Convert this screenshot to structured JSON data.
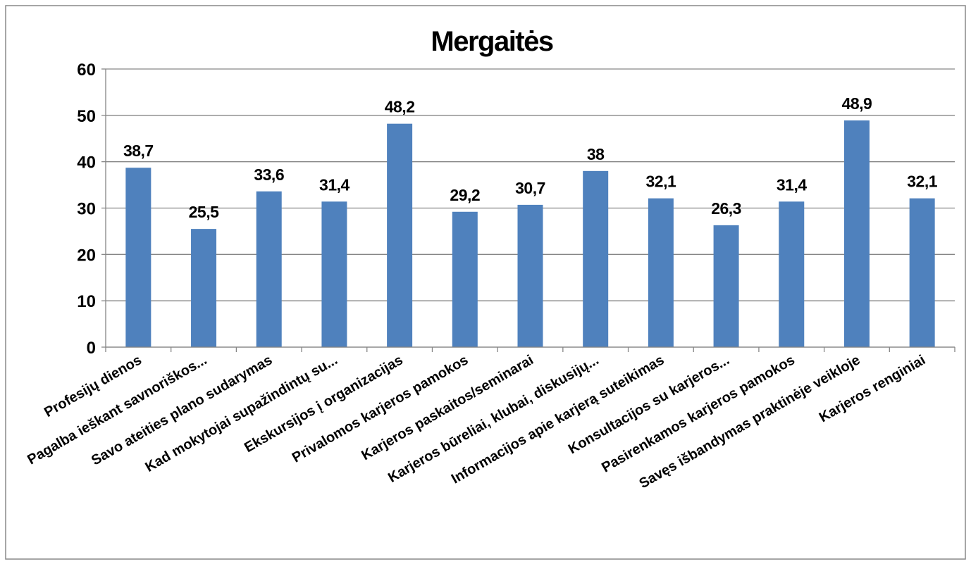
{
  "chart_data": {
    "type": "bar",
    "title": "Mergaitės",
    "categories": [
      "Profesijų dienos",
      "Pagalba ieškant savnoriškos...",
      "Savo ateities plano sudarymas",
      "Kad mokytojai supažindintų su...",
      "Ekskursijos į organizacijas",
      "Privalomos karjeros pamokos",
      "Karjeros paskaitos/seminarai",
      "Karjeros būreliai, klubai, diskusijų...",
      "Informacijos apie karjerą suteikimas",
      "Konsultacijos su karjeros...",
      "Pasirenkamos karjeros pamokos",
      "Savęs išbandymas praktinėje veikloje",
      "Karjeros renginiai"
    ],
    "values": [
      38.7,
      25.5,
      33.6,
      31.4,
      48.2,
      29.2,
      30.7,
      38,
      32.1,
      26.3,
      31.4,
      48.9,
      32.1
    ],
    "value_labels": [
      "38,7",
      "25,5",
      "33,6",
      "31,4",
      "48,2",
      "29,2",
      "30,7",
      "38",
      "32,1",
      "26,3",
      "31,4",
      "48,9",
      "32,1"
    ],
    "color": "#4f81bd",
    "ylim": [
      0,
      60
    ],
    "yticks": [
      0,
      10,
      20,
      30,
      40,
      50,
      60
    ],
    "grid": true
  }
}
